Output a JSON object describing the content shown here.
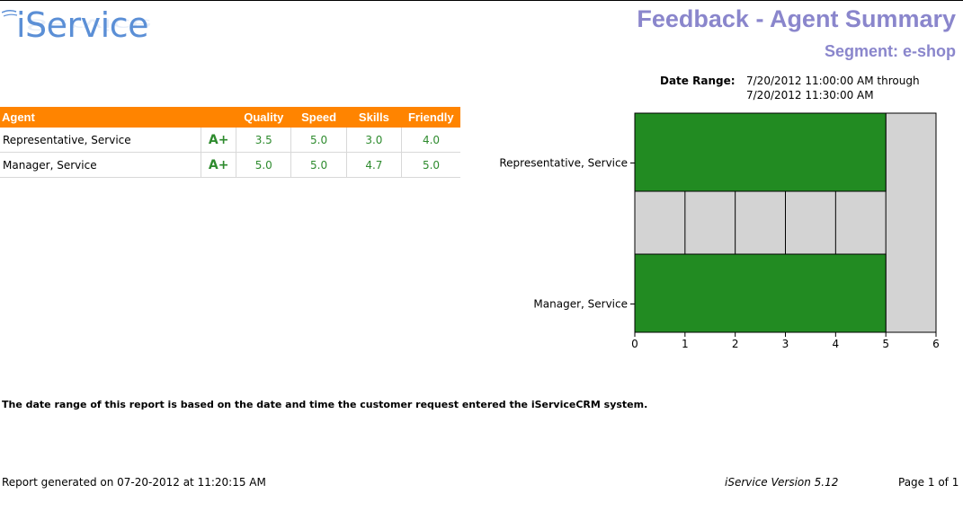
{
  "header": {
    "logo_text": "iService",
    "title": "Feedback - Agent Summary",
    "segment": "Segment: e-shop",
    "date_range_label": "Date Range:",
    "date_range_line1": "7/20/2012 11:00:00 AM through",
    "date_range_line2": "7/20/2012 11:30:00 AM"
  },
  "table": {
    "headers": [
      "Agent",
      "",
      "Quality",
      "Speed",
      "Skills",
      "Friendly"
    ],
    "rows": [
      {
        "agent": "Representative, Service",
        "grade": "A+",
        "quality": "3.5",
        "speed": "5.0",
        "skills": "3.0",
        "friendly": "4.0"
      },
      {
        "agent": "Manager, Service",
        "grade": "A+",
        "quality": "5.0",
        "speed": "5.0",
        "skills": "4.7",
        "friendly": "5.0"
      }
    ]
  },
  "colors": {
    "bar": "#228b22",
    "background": "#d3d3d3",
    "header_orange": "#ff8400",
    "title_purple": "#8a86cc",
    "value_green": "#2e8b2e"
  },
  "chart_data": {
    "type": "bar",
    "orientation": "horizontal",
    "categories": [
      "Representative, Service",
      "Manager, Service"
    ],
    "values": [
      5,
      5
    ],
    "xlim": [
      0,
      6
    ],
    "xticks": [
      "0",
      "1",
      "2",
      "3",
      "4",
      "5",
      "6"
    ],
    "grid": true
  },
  "footer": {
    "note": "The date range of this report is based on the date and time the customer request entered the iServiceCRM system.",
    "generated": "Report generated on 07-20-2012 at 11:20:15 AM",
    "version": "iService Version 5.12",
    "page": "Page 1 of 1"
  }
}
